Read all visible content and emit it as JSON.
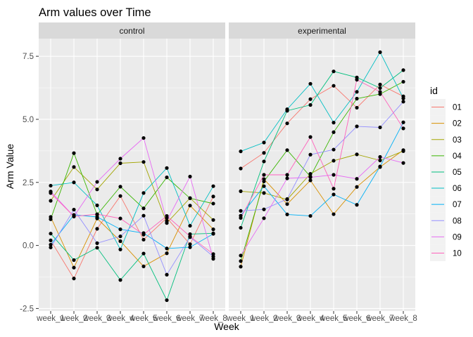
{
  "chart_data": {
    "type": "line",
    "title": "Arm values over Time",
    "xlabel": "Week",
    "ylabel": "Arm Value",
    "x": [
      "week_1",
      "week_2",
      "week_3",
      "week_4",
      "week_5",
      "week_6",
      "week_7",
      "week_8"
    ],
    "y_ticks": [
      -2.5,
      0.0,
      2.5,
      5.0,
      7.5
    ],
    "y_tick_labels": [
      "-2.5",
      "0.0",
      "2.5",
      "5.0",
      "7.5"
    ],
    "ylim": [
      -2.6,
      8.2
    ],
    "grid": true,
    "points": true,
    "legend": {
      "title": "id",
      "position": "right"
    },
    "panel_bg": "#EBEBEB",
    "strip_bg": "#D9D9D9",
    "series_colors": {
      "01": "#F8766D",
      "02": "#D89000",
      "03": "#A3A500",
      "04": "#39B600",
      "05": "#00BF7D",
      "06": "#00BFC4",
      "07": "#00B0F6",
      "08": "#9590FF",
      "09": "#E76BF3",
      "10": "#FF62BC"
    },
    "panels": [
      {
        "label": "control",
        "series": [
          {
            "name": "01",
            "values": [
              0.2,
              -1.31,
              0.66,
              1.96,
              0.23,
              1.09,
              0.05,
              1.94
            ]
          },
          {
            "name": "02",
            "values": [
              1.13,
              -0.88,
              1.07,
              0.17,
              -0.83,
              -0.31,
              1.58,
              0.64
            ]
          },
          {
            "name": "03",
            "values": [
              1.77,
              3.11,
              2.22,
              3.26,
              3.31,
              0.89,
              1.88,
              1.01
            ]
          },
          {
            "name": "04",
            "values": [
              1.04,
              3.66,
              1.22,
              2.33,
              1.47,
              2.7,
              1.87,
              1.66
            ]
          },
          {
            "name": "05",
            "values": [
              0.47,
              -0.58,
              -0.09,
              -1.37,
              -0.32,
              -2.17,
              0.45,
              0.48
            ]
          },
          {
            "name": "06",
            "values": [
              2.37,
              2.5,
              1.59,
              -0.16,
              2.08,
              3.07,
              0.78,
              2.35
            ]
          },
          {
            "name": "07",
            "values": [
              0.03,
              1.21,
              1.13,
              0.64,
              0.49,
              -0.12,
              -0.07,
              0.46
            ]
          },
          {
            "name": "08",
            "values": [
              -0.08,
              1.42,
              0.09,
              0.36,
              1.18,
              -1.16,
              0.33,
              -0.44
            ]
          },
          {
            "name": "09",
            "values": [
              2.14,
              1.15,
              2.52,
              3.44,
              4.26,
              0.97,
              2.73,
              -0.53
            ]
          },
          {
            "name": "10",
            "values": [
              2.08,
              1.15,
              1.24,
              1.07,
              0.43,
              1.17,
              0.36,
              -0.34
            ]
          }
        ]
      },
      {
        "label": "experimental",
        "series": [
          {
            "name": "01",
            "values": [
              3.05,
              3.67,
              4.84,
              5.8,
              6.33,
              5.46,
              6.38,
              5.91
            ]
          },
          {
            "name": "02",
            "values": [
              -0.84,
              2.63,
              1.64,
              2.58,
              1.24,
              2.32,
              3.11,
              3.78
            ]
          },
          {
            "name": "03",
            "values": [
              2.15,
              2.08,
              1.82,
              2.84,
              3.36,
              3.61,
              3.37,
              3.74
            ]
          },
          {
            "name": "04",
            "values": [
              -0.62,
              2.54,
              3.78,
              2.73,
              4.49,
              5.82,
              6.0,
              6.49
            ]
          },
          {
            "name": "05",
            "values": [
              0.7,
              3.33,
              5.34,
              5.57,
              6.9,
              6.66,
              6.24,
              6.95
            ]
          },
          {
            "name": "06",
            "values": [
              3.73,
              4.08,
              5.4,
              6.41,
              4.87,
              6.09,
              7.66,
              5.83
            ]
          },
          {
            "name": "07",
            "values": [
              1.18,
              2.35,
              1.23,
              1.17,
              2.02,
              1.61,
              3.13,
              4.88
            ]
          },
          {
            "name": "08",
            "values": [
              1.37,
              1.43,
              1.84,
              3.6,
              3.8,
              4.72,
              4.68,
              5.7
            ]
          },
          {
            "name": "09",
            "values": [
              -0.4,
              1.08,
              2.66,
              2.7,
              2.8,
              2.64,
              3.51,
              3.27
            ]
          },
          {
            "name": "10",
            "values": [
              1.09,
              2.8,
              2.8,
              4.3,
              2.25,
              6.57,
              6.09,
              4.64
            ]
          }
        ]
      }
    ]
  }
}
